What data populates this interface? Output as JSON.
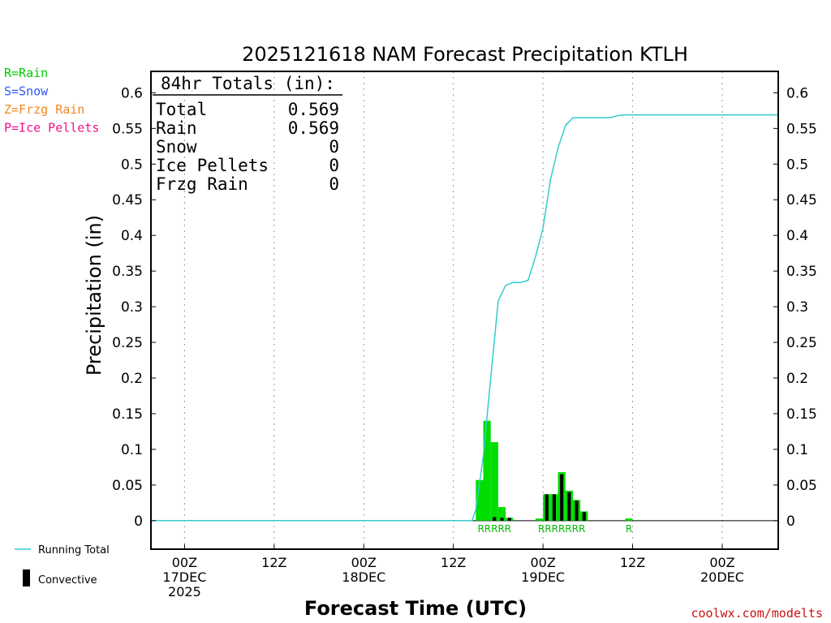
{
  "chart_data": {
    "type": "bar",
    "title": "2025121618 NAM Forecast Precipitation KTLH",
    "xlabel": "Forecast Time (UTC)",
    "ylabel": "Precipitation (in)",
    "ylim": [
      -0.04,
      0.63
    ],
    "yticks": [
      0,
      0.05,
      0.1,
      0.15,
      0.2,
      0.25,
      0.3,
      0.35,
      0.4,
      0.45,
      0.5,
      0.55,
      0.6
    ],
    "ytick_labels": [
      "0",
      "0.05",
      "0.1",
      "0.15",
      "0.2",
      "0.25",
      "0.3",
      "0.35",
      "0.4",
      "0.45",
      "0.5",
      "0.55",
      "0.6"
    ],
    "xlim_hours": [
      -4.5,
      79.5
    ],
    "xticks": [
      {
        "hour": 0,
        "lines": [
          "00Z",
          "17DEC",
          "2025"
        ]
      },
      {
        "hour": 12,
        "lines": [
          "12Z"
        ]
      },
      {
        "hour": 24,
        "lines": [
          "00Z",
          "18DEC"
        ]
      },
      {
        "hour": 36,
        "lines": [
          "12Z"
        ]
      },
      {
        "hour": 48,
        "lines": [
          "00Z",
          "19DEC"
        ]
      },
      {
        "hour": 60,
        "lines": [
          "12Z"
        ]
      },
      {
        "hour": 72,
        "lines": [
          "00Z",
          "20DEC"
        ]
      }
    ],
    "bar_hours": [
      39.5,
      40.5,
      41.5,
      42.5,
      43.5,
      47.5,
      48.5,
      49.5,
      50.5,
      51.5,
      52.5,
      53.5,
      59.5
    ],
    "rain": [
      0.057,
      0.14,
      0.11,
      0.019,
      0.004,
      0.003,
      0.037,
      0.037,
      0.068,
      0.042,
      0.029,
      0.013,
      0.003
    ],
    "convective": [
      0,
      0,
      0.005,
      0.004,
      0.004,
      0,
      0.037,
      0.037,
      0.065,
      0.04,
      0.028,
      0.012,
      0
    ],
    "ptype_labels": [
      {
        "hours": [
          39.5,
          40.5,
          41.5,
          42.5,
          43.5
        ],
        "text": "RRRRR"
      },
      {
        "hours": [
          47.5,
          48.5,
          49.5,
          50.5,
          51.5,
          52.5,
          53.5
        ],
        "text": "RRRRRRR"
      },
      {
        "hours": [
          59.5
        ],
        "text": "R"
      }
    ],
    "running_total": {
      "x": [
        -4.5,
        38.5,
        39,
        40,
        41,
        42,
        43,
        44,
        45,
        46,
        47,
        48,
        49,
        50,
        51,
        52,
        53,
        54,
        55,
        56,
        57,
        58,
        59,
        60,
        61,
        62,
        79.5
      ],
      "y": [
        0,
        0,
        0.015,
        0.09,
        0.2,
        0.308,
        0.33,
        0.334,
        0.334,
        0.337,
        0.37,
        0.41,
        0.478,
        0.522,
        0.554,
        0.565,
        0.565,
        0.565,
        0.565,
        0.565,
        0.565,
        0.568,
        0.569,
        0.569,
        0.569,
        0.569,
        0.569
      ]
    },
    "series_legend": [
      {
        "name": "Running Total",
        "color": "#33cccc"
      },
      {
        "name": "Convective",
        "color": "#000000"
      }
    ],
    "rain_color": "#00dd00"
  },
  "totals": {
    "heading": "84hr Totals (in):",
    "rows": [
      {
        "label": "Total",
        "value": "0.569"
      },
      {
        "label": "Rain",
        "value": "0.569"
      },
      {
        "label": "Snow",
        "value": "0"
      },
      {
        "label": "Ice Pellets",
        "value": "0"
      },
      {
        "label": "Frzg Rain",
        "value": "0"
      }
    ]
  },
  "ptype_legend": [
    {
      "text": "R=Rain",
      "color": "#00cc00"
    },
    {
      "text": "S=Snow",
      "color": "#3355ff"
    },
    {
      "text": "Z=Frzg Rain",
      "color": "#ee8822"
    },
    {
      "text": "P=Ice Pellets",
      "color": "#ee1188"
    }
  ],
  "credit": {
    "text": "coolwx.com/modelts",
    "color": "#cc1111"
  }
}
